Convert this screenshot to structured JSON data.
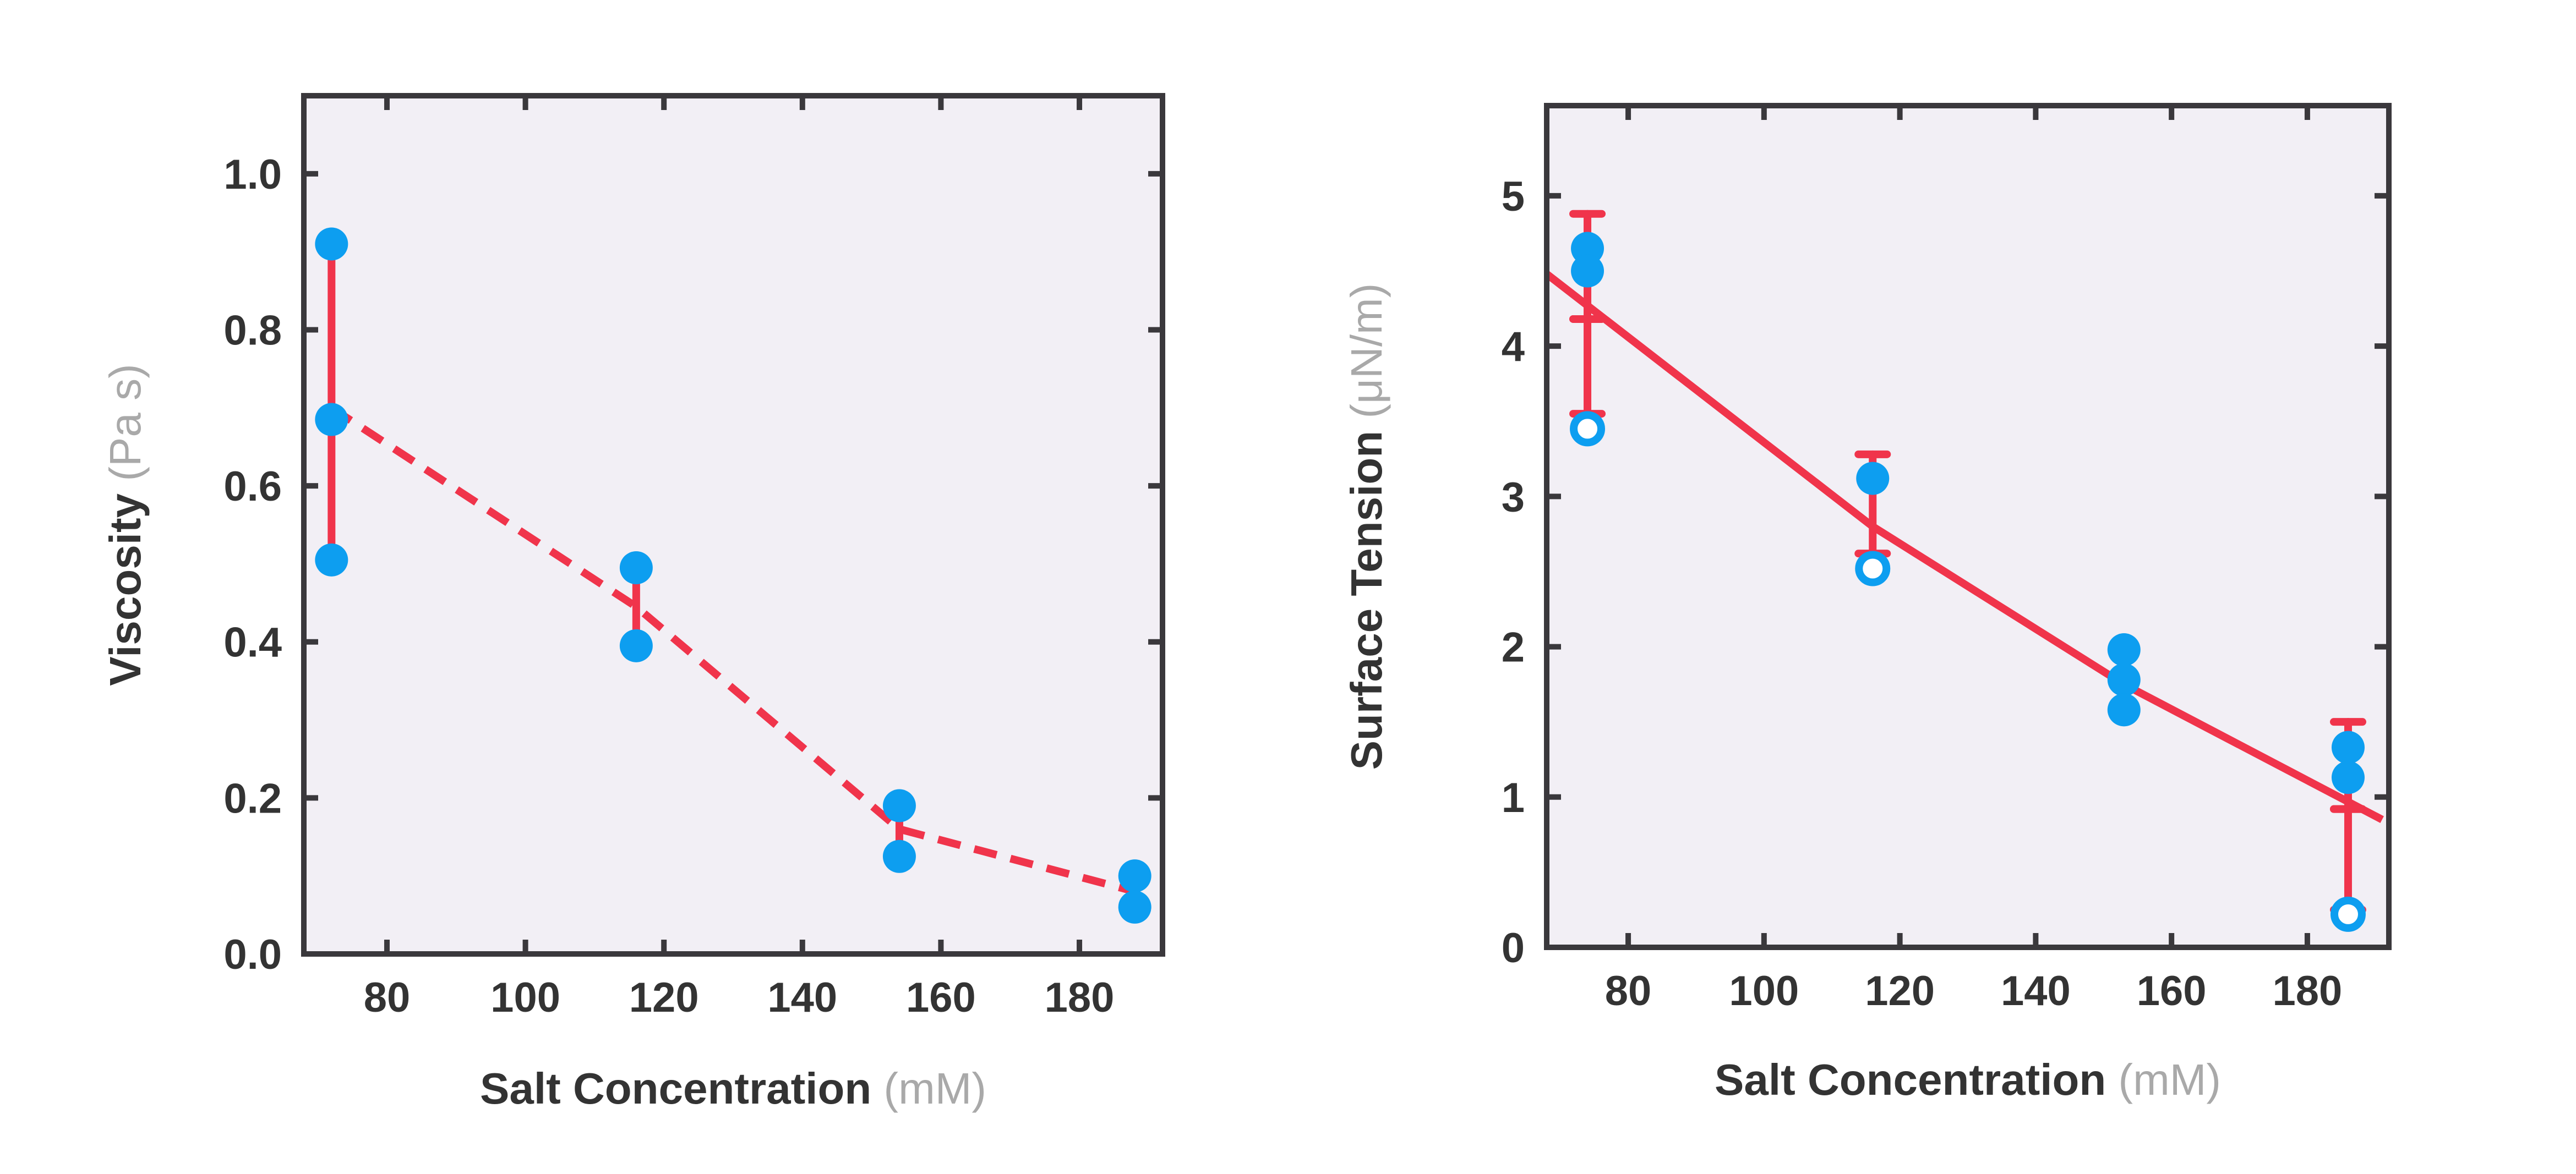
{
  "colors": {
    "background": "#ffffff",
    "panel": "#f2eff5",
    "axes": "#3a383c",
    "points": "#0d9ef0",
    "lines": "#f0344b",
    "unit_text": "#a9a9a9"
  },
  "chart_data": [
    {
      "type": "scatter",
      "xlabel": "Salt Concentration",
      "xunit": "(mM)",
      "ylabel": "Viscosity",
      "yunit": "(Pa s)",
      "xlim": [
        68,
        192
      ],
      "ylim": [
        0,
        1.1
      ],
      "xticks": [
        80,
        100,
        120,
        140,
        160,
        180
      ],
      "yticks": [
        0.0,
        0.2,
        0.4,
        0.6,
        0.8,
        1.0
      ],
      "ytick_labels": [
        "0.0",
        "0.2",
        "0.4",
        "0.6",
        "0.8",
        "1.0"
      ],
      "grid": false,
      "series": [
        {
          "kind": "points",
          "style": "filled",
          "x": [
            72,
            72,
            72,
            116,
            116,
            154,
            154,
            188,
            188
          ],
          "y": [
            0.91,
            0.685,
            0.505,
            0.495,
            0.395,
            0.19,
            0.125,
            0.1,
            0.06
          ]
        },
        {
          "kind": "line",
          "style": "dashed",
          "x": [
            72,
            116,
            154,
            188
          ],
          "y": [
            0.7,
            0.445,
            0.16,
            0.08
          ]
        },
        {
          "kind": "errorbars",
          "caps": false,
          "x": [
            72,
            116,
            154,
            188
          ],
          "low": [
            0.505,
            0.395,
            0.125,
            0.06
          ],
          "high": [
            0.91,
            0.495,
            0.19,
            0.1
          ]
        }
      ]
    },
    {
      "type": "scatter",
      "xlabel": "Salt Concentration",
      "xunit": "(mM)",
      "ylabel": "Surface Tension",
      "yunit": "(μN/m)",
      "xlim": [
        68,
        192
      ],
      "ylim": [
        0,
        5.6
      ],
      "xticks": [
        80,
        100,
        120,
        140,
        160,
        180
      ],
      "yticks": [
        0,
        1,
        2,
        3,
        4,
        5
      ],
      "ytick_labels": [
        "0",
        "1",
        "2",
        "3",
        "4",
        "5"
      ],
      "grid": false,
      "series": [
        {
          "kind": "points",
          "style": "filled",
          "x": [
            74,
            74,
            116,
            153,
            153,
            153,
            186,
            186
          ],
          "y": [
            4.65,
            4.5,
            3.12,
            1.98,
            1.78,
            1.58,
            1.33,
            1.13
          ]
        },
        {
          "kind": "points",
          "style": "open",
          "x": [
            74,
            116,
            186
          ],
          "y": [
            3.45,
            2.52,
            0.22
          ]
        },
        {
          "kind": "line",
          "style": "solid",
          "x": [
            68,
            116,
            153,
            191
          ],
          "y": [
            4.48,
            2.8,
            1.75,
            0.85
          ]
        },
        {
          "kind": "errorbars",
          "caps": true,
          "x": [
            74,
            74,
            116,
            186,
            186
          ],
          "low": [
            3.55,
            4.18,
            2.62,
            0.25,
            0.92
          ],
          "high": [
            4.18,
            4.88,
            3.28,
            0.92,
            1.5
          ]
        }
      ]
    }
  ]
}
